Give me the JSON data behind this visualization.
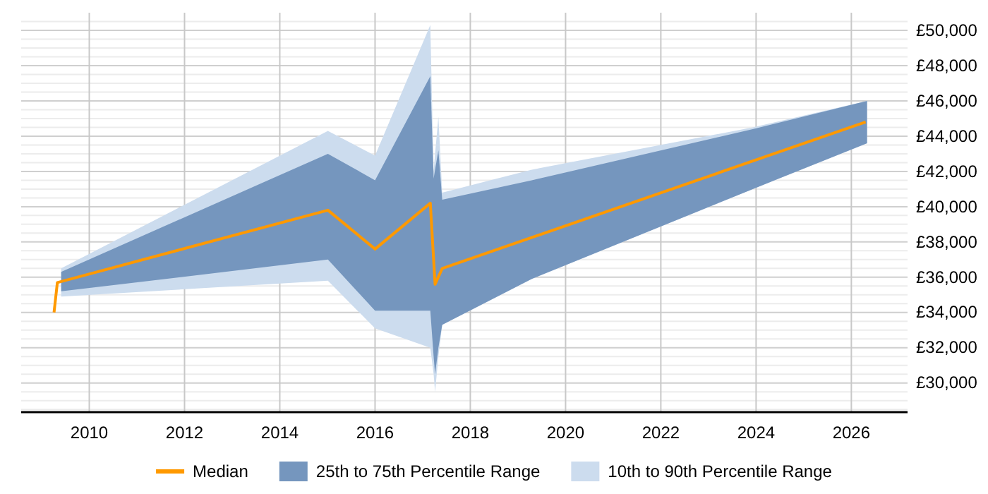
{
  "chart_data": {
    "type": "line",
    "xlim": [
      2008.57,
      2027.18
    ],
    "ylim": [
      28350,
      51000
    ],
    "xticks": [
      2010,
      2012,
      2014,
      2016,
      2018,
      2020,
      2022,
      2024,
      2026
    ],
    "yticks": [
      {
        "value": 28500,
        "label": null
      },
      {
        "value": 29000,
        "label": null
      },
      {
        "value": 29500,
        "label": null
      },
      {
        "value": 30000,
        "label": "£30,000"
      },
      {
        "value": 30500,
        "label": null
      },
      {
        "value": 31000,
        "label": null
      },
      {
        "value": 31500,
        "label": null
      },
      {
        "value": 32000,
        "label": "£32,000"
      },
      {
        "value": 32500,
        "label": null
      },
      {
        "value": 33000,
        "label": null
      },
      {
        "value": 33500,
        "label": null
      },
      {
        "value": 34000,
        "label": "£34,000"
      },
      {
        "value": 34500,
        "label": null
      },
      {
        "value": 35000,
        "label": null
      },
      {
        "value": 35500,
        "label": null
      },
      {
        "value": 36000,
        "label": "£36,000"
      },
      {
        "value": 36500,
        "label": null
      },
      {
        "value": 37000,
        "label": null
      },
      {
        "value": 37500,
        "label": null
      },
      {
        "value": 38000,
        "label": "£38,000"
      },
      {
        "value": 38500,
        "label": null
      },
      {
        "value": 39000,
        "label": null
      },
      {
        "value": 39500,
        "label": null
      },
      {
        "value": 40000,
        "label": "£40,000"
      },
      {
        "value": 40500,
        "label": null
      },
      {
        "value": 41000,
        "label": null
      },
      {
        "value": 41500,
        "label": null
      },
      {
        "value": 42000,
        "label": "£42,000"
      },
      {
        "value": 42500,
        "label": null
      },
      {
        "value": 43000,
        "label": null
      },
      {
        "value": 43500,
        "label": null
      },
      {
        "value": 44000,
        "label": "£44,000"
      },
      {
        "value": 44500,
        "label": null
      },
      {
        "value": 45000,
        "label": null
      },
      {
        "value": 45500,
        "label": null
      },
      {
        "value": 46000,
        "label": "£46,000"
      },
      {
        "value": 46500,
        "label": null
      },
      {
        "value": 47000,
        "label": null
      },
      {
        "value": 47500,
        "label": null
      },
      {
        "value": 48000,
        "label": "£48,000"
      },
      {
        "value": 48500,
        "label": null
      },
      {
        "value": 49000,
        "label": null
      },
      {
        "value": 49500,
        "label": null
      },
      {
        "value": 50000,
        "label": "£50,000"
      },
      {
        "value": 50500,
        "label": null
      }
    ],
    "grid": true,
    "legend": "bottom",
    "series": [
      {
        "name": "Median",
        "color": "#ff9900",
        "x": [
          2009.26,
          2009.33,
          2015.01,
          2016.0,
          2017.16,
          2017.26,
          2017.41,
          2026.3
        ],
        "values": [
          34000,
          35700,
          39800,
          37600,
          40200,
          35600,
          36500,
          44800
        ]
      },
      {
        "name": "25th to 75th Percentile Range",
        "color": "#7596be",
        "x": [
          2009.41,
          2015.01,
          2016.0,
          2017.16,
          2017.23,
          2017.26,
          2017.33,
          2017.41,
          2019.29,
          2023.93,
          2026.33
        ],
        "values": [
          null,
          null,
          null,
          null,
          null,
          null,
          null,
          null,
          null,
          null,
          null
        ],
        "lower": [
          35200,
          37000,
          34100,
          34100,
          31500,
          30500,
          32000,
          33300,
          35900,
          41000,
          43600
        ],
        "upper": [
          36300,
          43000,
          41500,
          47400,
          41600,
          42100,
          43200,
          40400,
          41500,
          44400,
          46000
        ]
      },
      {
        "name": "10th to 90th Percentile Range",
        "color": "#ccdcee",
        "x": [
          2009.41,
          2015.01,
          2016.0,
          2017.16,
          2017.23,
          2017.26,
          2017.33,
          2017.41,
          2019.29,
          2023.93,
          2026.33
        ],
        "values": [
          null,
          null,
          null,
          null,
          null,
          null,
          null,
          null,
          null,
          null,
          null
        ],
        "lower": [
          34900,
          35800,
          33100,
          32000,
          30500,
          29500,
          31500,
          33300,
          35900,
          41000,
          43600
        ],
        "upper": [
          36500,
          44300,
          42900,
          50300,
          42000,
          43000,
          45100,
          40800,
          42100,
          44500,
          46000
        ]
      }
    ]
  }
}
